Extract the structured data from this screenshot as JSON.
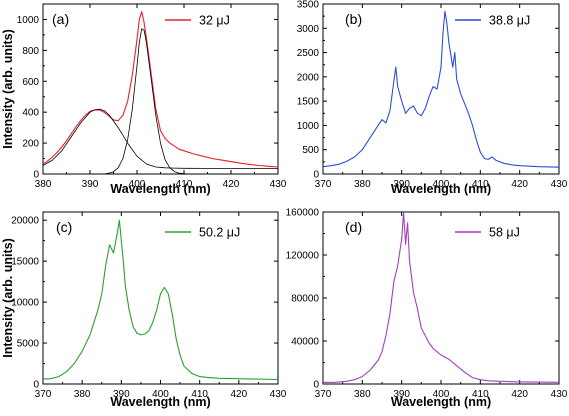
{
  "chart_data": [
    {
      "type": "line",
      "panel_label": "(a)",
      "xlabel": "Wavelength (nm)",
      "ylabel": "Intensity (arb. units)",
      "xlim": [
        380,
        430
      ],
      "ylim": [
        0,
        1100
      ],
      "xticks": [
        380,
        390,
        400,
        410,
        420,
        430
      ],
      "yticks": [
        0,
        200,
        400,
        600,
        800,
        1000
      ],
      "legend_position": "top-right",
      "series": [
        {
          "name": "32 μJ",
          "color": "#e8202a",
          "x": [
            380,
            381,
            382,
            383,
            384,
            385,
            386,
            387,
            388,
            389,
            390,
            391,
            392,
            393,
            394,
            395,
            396,
            397,
            398,
            399,
            400,
            400.5,
            401,
            401.5,
            402,
            403,
            404,
            405,
            406,
            407,
            408,
            409,
            410,
            412,
            414,
            416,
            418,
            420,
            422,
            424,
            426,
            428,
            430
          ],
          "values": [
            65,
            85,
            110,
            140,
            175,
            215,
            260,
            305,
            345,
            380,
            405,
            415,
            415,
            400,
            375,
            350,
            345,
            380,
            470,
            640,
            870,
            1000,
            1050,
            980,
            880,
            650,
            420,
            280,
            230,
            200,
            180,
            160,
            150,
            130,
            115,
            100,
            90,
            80,
            70,
            62,
            55,
            50,
            45
          ]
        },
        {
          "color": "#000000",
          "x": [
            380,
            382,
            384,
            386,
            388,
            390,
            391,
            392,
            393,
            394,
            396,
            398,
            400,
            402,
            404,
            406,
            408,
            410,
            415,
            420,
            425,
            430
          ],
          "values": [
            55,
            90,
            150,
            240,
            330,
            400,
            415,
            420,
            410,
            385,
            300,
            200,
            115,
            65,
            45,
            40,
            38,
            37,
            36,
            36,
            36,
            36
          ]
        },
        {
          "color": "#000000",
          "x": [
            393,
            394,
            395,
            396,
            397,
            398,
            399,
            400,
            400.5,
            401,
            401.5,
            402,
            403,
            404,
            405,
            406,
            407,
            408,
            409,
            410,
            411
          ],
          "values": [
            0,
            5,
            15,
            40,
            100,
            220,
            420,
            700,
            850,
            940,
            930,
            850,
            620,
            380,
            200,
            90,
            40,
            15,
            5,
            2,
            0
          ]
        }
      ]
    },
    {
      "type": "line",
      "panel_label": "(b)",
      "xlabel": "Wavelength (nm)",
      "ylabel": "",
      "xlim": [
        370,
        430
      ],
      "ylim": [
        0,
        3500
      ],
      "xticks": [
        370,
        380,
        390,
        400,
        410,
        420,
        430
      ],
      "yticks": [
        0,
        500,
        1000,
        1500,
        2000,
        2500,
        3000,
        3500
      ],
      "legend_position": "top-right",
      "series": [
        {
          "name": "38.8 μJ",
          "color": "#2b4fd8",
          "x": [
            370,
            372,
            374,
            376,
            378,
            380,
            382,
            384,
            385,
            386,
            387,
            388,
            388.5,
            389,
            390,
            391,
            392,
            393,
            394,
            395,
            396,
            397,
            398,
            399,
            400,
            400.5,
            401,
            401.5,
            402,
            403,
            403.5,
            404,
            405,
            406,
            407,
            408,
            409,
            410,
            411,
            412,
            413,
            414,
            416,
            418,
            420,
            425,
            430
          ],
          "values": [
            150,
            170,
            200,
            260,
            350,
            500,
            750,
            1000,
            1120,
            1050,
            1300,
            1900,
            2200,
            1800,
            1500,
            1250,
            1350,
            1400,
            1250,
            1200,
            1350,
            1600,
            1800,
            1750,
            2200,
            2900,
            3350,
            3100,
            2700,
            2200,
            2500,
            1950,
            1650,
            1450,
            1250,
            1000,
            700,
            450,
            320,
            300,
            350,
            280,
            220,
            190,
            170,
            150,
            140
          ]
        }
      ]
    },
    {
      "type": "line",
      "panel_label": "(c)",
      "xlabel": "Wavelength (nm)",
      "ylabel": "Intensity (arb. units)",
      "xlim": [
        370,
        430
      ],
      "ylim": [
        0,
        21000
      ],
      "xticks": [
        370,
        380,
        390,
        400,
        410,
        420,
        430
      ],
      "yticks": [
        0,
        5000,
        10000,
        15000,
        20000
      ],
      "legend_position": "top-right",
      "series": [
        {
          "name": "50.2 μJ",
          "color": "#2ca02c",
          "x": [
            370,
            372,
            374,
            376,
            378,
            380,
            382,
            384,
            385,
            386,
            387,
            388,
            389,
            389.5,
            390,
            390.5,
            391,
            392,
            393,
            394,
            395,
            396,
            397,
            398,
            399,
            400,
            401,
            402,
            403,
            404,
            405,
            406,
            408,
            410,
            412,
            415,
            420,
            425,
            430
          ],
          "values": [
            600,
            650,
            900,
            1500,
            2500,
            4000,
            6000,
            9000,
            11000,
            14500,
            17000,
            16000,
            18500,
            20000,
            17500,
            15000,
            12000,
            9000,
            7000,
            6200,
            6000,
            6100,
            6500,
            7500,
            9000,
            11000,
            11800,
            11000,
            8500,
            5500,
            3500,
            2200,
            1300,
            900,
            800,
            700,
            650,
            600,
            550
          ]
        }
      ]
    },
    {
      "type": "line",
      "panel_label": "(d)",
      "xlabel": "Wavelength (nm)",
      "ylabel": "",
      "xlim": [
        370,
        430
      ],
      "ylim": [
        0,
        160000
      ],
      "xticks": [
        370,
        380,
        390,
        400,
        410,
        420,
        430
      ],
      "yticks": [
        0,
        40000,
        80000,
        120000,
        160000
      ],
      "legend_position": "top-right",
      "series": [
        {
          "name": "58 μJ",
          "color": "#a23fbf",
          "x": [
            370,
            373,
            376,
            378,
            380,
            382,
            384,
            385,
            386,
            387,
            388,
            389,
            390,
            390.5,
            391,
            391.5,
            392,
            393,
            394,
            395,
            396,
            397,
            398,
            399,
            400,
            401,
            402,
            403,
            404,
            405,
            406,
            407,
            408,
            410,
            412,
            415,
            420,
            425,
            430
          ],
          "values": [
            1500,
            1600,
            2500,
            4000,
            7000,
            13000,
            22000,
            30000,
            45000,
            65000,
            95000,
            110000,
            135000,
            160000,
            130000,
            150000,
            115000,
            85000,
            70000,
            52000,
            45000,
            38000,
            33000,
            30000,
            27000,
            25000,
            23000,
            20000,
            17000,
            14000,
            11000,
            8500,
            6000,
            4000,
            3000,
            2500,
            2000,
            1800,
            1600
          ]
        }
      ]
    }
  ]
}
